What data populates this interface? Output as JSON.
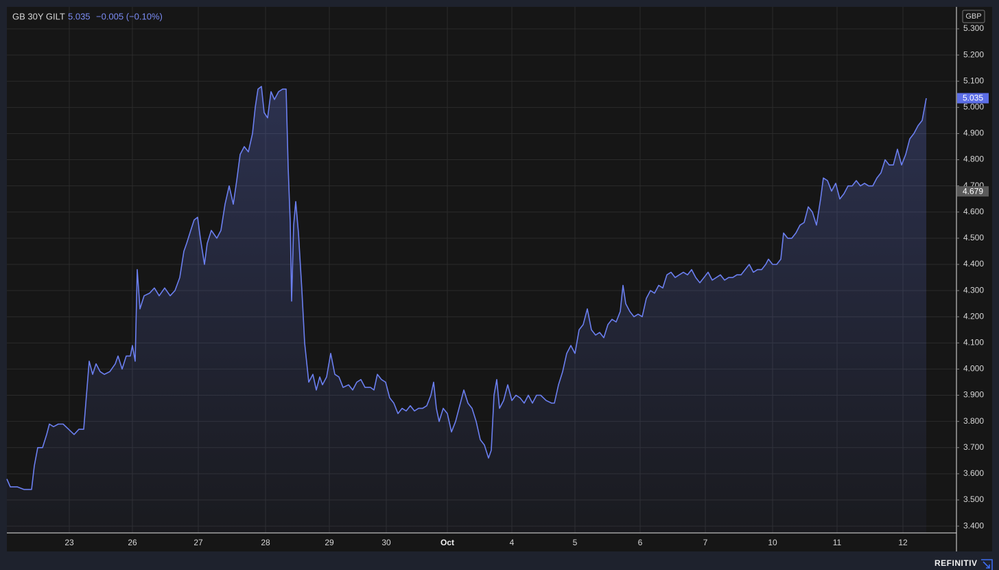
{
  "chart_data": {
    "type": "area",
    "title": "GB 30Y GILT",
    "change": "−0.005 (−0.10%)",
    "currency": "GBP",
    "source": "REFINITIV",
    "reference_value": 4.679,
    "grid": true,
    "xlim": [
      0,
      138.4
    ],
    "ylim": [
      3.374,
      5.384
    ],
    "xticks": [
      {
        "value": 9.1,
        "label": "23"
      },
      {
        "value": 18.3,
        "label": "26"
      },
      {
        "value": 27.9,
        "label": "27"
      },
      {
        "value": 37.7,
        "label": "28"
      },
      {
        "value": 47.0,
        "label": "29"
      },
      {
        "value": 55.3,
        "label": "30"
      },
      {
        "value": 64.2,
        "label": "Oct"
      },
      {
        "value": 73.6,
        "label": "4"
      },
      {
        "value": 82.8,
        "label": "5"
      },
      {
        "value": 92.3,
        "label": "6"
      },
      {
        "value": 101.8,
        "label": "7"
      },
      {
        "value": 111.6,
        "label": "10"
      },
      {
        "value": 121.0,
        "label": "11"
      },
      {
        "value": 130.6,
        "label": "12"
      }
    ],
    "yticks": [
      {
        "value": 3.4,
        "label": "3.400"
      },
      {
        "value": 3.5,
        "label": "3.500"
      },
      {
        "value": 3.6,
        "label": "3.600"
      },
      {
        "value": 3.7,
        "label": "3.700"
      },
      {
        "value": 3.8,
        "label": "3.800"
      },
      {
        "value": 3.9,
        "label": "3.900"
      },
      {
        "value": 4.0,
        "label": "4.000"
      },
      {
        "value": 4.1,
        "label": "4.100"
      },
      {
        "value": 4.2,
        "label": "4.200"
      },
      {
        "value": 4.3,
        "label": "4.300"
      },
      {
        "value": 4.4,
        "label": "4.400"
      },
      {
        "value": 4.5,
        "label": "4.500"
      },
      {
        "value": 4.6,
        "label": "4.600"
      },
      {
        "value": 4.7,
        "label": "4.700"
      },
      {
        "value": 4.8,
        "label": "4.800"
      },
      {
        "value": 4.9,
        "label": "4.900"
      },
      {
        "value": 5.0,
        "label": "5.000"
      },
      {
        "value": 5.1,
        "label": "5.100"
      },
      {
        "value": 5.2,
        "label": "5.200"
      },
      {
        "value": 5.3,
        "label": "5.300"
      }
    ],
    "x": [
      0,
      0.5,
      1.5,
      2.5,
      3.6,
      4.0,
      4.5,
      5.2,
      5.8,
      6.2,
      6.8,
      7.5,
      8.2,
      9.0,
      9.8,
      10.5,
      11.2,
      11.6,
      12.0,
      12.5,
      13.0,
      13.6,
      14.2,
      15.0,
      15.8,
      16.2,
      16.8,
      17.4,
      18.0,
      18.3,
      18.7,
      19.0,
      19.4,
      20.0,
      20.8,
      21.5,
      22.2,
      23.0,
      23.8,
      24.5,
      25.2,
      25.8,
      26.2,
      26.8,
      27.3,
      27.8,
      28.2,
      28.8,
      29.2,
      29.8,
      30.6,
      31.2,
      31.8,
      32.4,
      33.0,
      33.5,
      34.0,
      34.6,
      35.2,
      35.8,
      36.2,
      36.6,
      37.1,
      37.5,
      38.0,
      38.5,
      39.0,
      39.6,
      40.2,
      40.7,
      41.0,
      41.3,
      41.5,
      41.8,
      42.1,
      42.5,
      43.0,
      43.4,
      44.0,
      44.6,
      45.1,
      45.6,
      46.0,
      46.6,
      47.2,
      47.8,
      48.4,
      49.0,
      49.8,
      50.4,
      51.0,
      51.6,
      52.2,
      53.0,
      53.5,
      54.0,
      54.6,
      55.2,
      55.8,
      56.4,
      57.0,
      57.6,
      58.2,
      58.8,
      59.4,
      60.0,
      60.6,
      61.2,
      61.8,
      62.2,
      62.6,
      63.0,
      63.6,
      64.2,
      64.8,
      65.4,
      66.0,
      66.6,
      67.2,
      67.8,
      68.4,
      69.0,
      69.6,
      70.2,
      70.6,
      71.0,
      71.4,
      71.8,
      72.4,
      73.0,
      73.6,
      74.2,
      74.8,
      75.4,
      76.0,
      76.6,
      77.2,
      77.8,
      78.6,
      79.4,
      79.8,
      80.4,
      81.0,
      81.6,
      82.2,
      82.8,
      83.4,
      84.0,
      84.6,
      85.2,
      85.8,
      86.4,
      87.0,
      87.6,
      88.2,
      88.8,
      89.4,
      89.8,
      90.2,
      90.8,
      91.4,
      92.0,
      92.6,
      93.2,
      93.8,
      94.4,
      95.0,
      95.6,
      96.2,
      96.8,
      97.4,
      98.0,
      98.6,
      99.2,
      99.8,
      100.4,
      101.0,
      101.6,
      102.2,
      102.8,
      103.4,
      104.0,
      104.6,
      105.2,
      105.8,
      106.4,
      107.0,
      107.6,
      108.2,
      108.8,
      109.4,
      110.0,
      110.6,
      111.0,
      111.6,
      112.2,
      112.8,
      113.2,
      113.8,
      114.4,
      115.0,
      115.6,
      116.2,
      116.8,
      117.4,
      118.0,
      118.6,
      119.0,
      119.6,
      120.2,
      120.8,
      121.4,
      122.0,
      122.6,
      123.2,
      123.8,
      124.4,
      125.0,
      125.6,
      126.2,
      126.8,
      127.4,
      128.0,
      128.6,
      129.2,
      129.8,
      130.4,
      131.0,
      131.6,
      132.2,
      132.8,
      133.4,
      134.0
    ],
    "series": [
      {
        "color": "#6b7ff0",
        "values": [
          3.58,
          3.55,
          3.55,
          3.54,
          3.54,
          3.63,
          3.7,
          3.7,
          3.75,
          3.79,
          3.78,
          3.79,
          3.79,
          3.77,
          3.75,
          3.77,
          3.77,
          3.9,
          4.03,
          3.98,
          4.02,
          3.99,
          3.98,
          3.99,
          4.02,
          4.05,
          4.0,
          4.05,
          4.05,
          4.09,
          4.03,
          4.38,
          4.23,
          4.28,
          4.29,
          4.31,
          4.28,
          4.31,
          4.28,
          4.3,
          4.35,
          4.45,
          4.48,
          4.53,
          4.57,
          4.58,
          4.5,
          4.4,
          4.48,
          4.53,
          4.5,
          4.53,
          4.63,
          4.7,
          4.63,
          4.72,
          4.82,
          4.85,
          4.83,
          4.9,
          5.0,
          5.07,
          5.08,
          4.98,
          4.96,
          5.06,
          5.03,
          5.06,
          5.07,
          5.07,
          4.77,
          4.56,
          4.26,
          4.55,
          4.64,
          4.52,
          4.3,
          4.1,
          3.95,
          3.98,
          3.92,
          3.97,
          3.94,
          3.97,
          4.06,
          3.98,
          3.97,
          3.93,
          3.94,
          3.92,
          3.95,
          3.96,
          3.93,
          3.93,
          3.92,
          3.98,
          3.96,
          3.95,
          3.89,
          3.87,
          3.83,
          3.85,
          3.84,
          3.86,
          3.84,
          3.85,
          3.85,
          3.86,
          3.9,
          3.95,
          3.85,
          3.8,
          3.85,
          3.83,
          3.76,
          3.8,
          3.86,
          3.92,
          3.87,
          3.85,
          3.8,
          3.73,
          3.71,
          3.66,
          3.69,
          3.9,
          3.96,
          3.85,
          3.88,
          3.94,
          3.88,
          3.9,
          3.89,
          3.87,
          3.9,
          3.87,
          3.9,
          3.9,
          3.88,
          3.87,
          3.87,
          3.94,
          3.99,
          4.06,
          4.09,
          4.06,
          4.15,
          4.17,
          4.23,
          4.15,
          4.13,
          4.14,
          4.12,
          4.17,
          4.19,
          4.18,
          4.22,
          4.32,
          4.25,
          4.22,
          4.2,
          4.21,
          4.2,
          4.27,
          4.3,
          4.29,
          4.32,
          4.31,
          4.36,
          4.37,
          4.35,
          4.36,
          4.37,
          4.36,
          4.38,
          4.35,
          4.33,
          4.35,
          4.37,
          4.34,
          4.35,
          4.36,
          4.34,
          4.35,
          4.35,
          4.36,
          4.36,
          4.38,
          4.4,
          4.37,
          4.38,
          4.38,
          4.4,
          4.42,
          4.4,
          4.4,
          4.42,
          4.52,
          4.5,
          4.5,
          4.52,
          4.55,
          4.56,
          4.62,
          4.6,
          4.55,
          4.65,
          4.73,
          4.72,
          4.68,
          4.71,
          4.65,
          4.67,
          4.7,
          4.7,
          4.72,
          4.7,
          4.71,
          4.7,
          4.7,
          4.73,
          4.75,
          4.8,
          4.78,
          4.78,
          4.84,
          4.78,
          4.82,
          4.88,
          4.9,
          4.93,
          4.95,
          5.035
        ]
      }
    ]
  }
}
